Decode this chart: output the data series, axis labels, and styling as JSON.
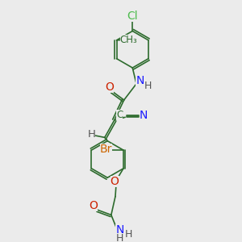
{
  "background_color": "#ebebeb",
  "bond_color": "#2d6b2d",
  "atoms": {
    "Cl": {
      "color": "#4dbb4d"
    },
    "Br": {
      "color": "#cc6600"
    },
    "O": {
      "color": "#cc2200"
    },
    "N": {
      "color": "#1a1aff"
    },
    "C": {
      "color": "#2d6b2d"
    },
    "H": {
      "color": "#555555"
    }
  },
  "figsize": [
    3.0,
    3.0
  ],
  "dpi": 100
}
